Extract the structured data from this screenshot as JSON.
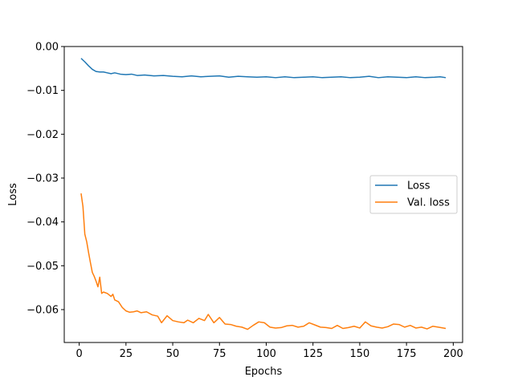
{
  "chart_data": {
    "type": "line",
    "title": "",
    "xlabel": "Epochs",
    "ylabel": "Loss",
    "xlim": [
      -8,
      205
    ],
    "ylim": [
      -0.0675,
      0.0
    ],
    "xticks": [
      0,
      25,
      50,
      75,
      100,
      125,
      150,
      175,
      200
    ],
    "xtick_labels": [
      "0",
      "25",
      "50",
      "75",
      "100",
      "125",
      "150",
      "175",
      "200"
    ],
    "yticks": [
      0.0,
      -0.01,
      -0.02,
      -0.03,
      -0.04,
      -0.05,
      -0.06
    ],
    "ytick_labels": [
      "0.00",
      "−0.01",
      "−0.02",
      "−0.03",
      "−0.04",
      "−0.05",
      "−0.06"
    ],
    "grid": false,
    "legend_position": "center-right",
    "series": [
      {
        "name": "Loss",
        "color": "#1f77b4",
        "points": [
          [
            1,
            -0.0027
          ],
          [
            3,
            -0.0035
          ],
          [
            5,
            -0.0044
          ],
          [
            7,
            -0.0052
          ],
          [
            9,
            -0.0057
          ],
          [
            11,
            -0.0058
          ],
          [
            13,
            -0.0058
          ],
          [
            15,
            -0.006
          ],
          [
            17,
            -0.0062
          ],
          [
            19,
            -0.006
          ],
          [
            22,
            -0.0063
          ],
          [
            25,
            -0.0064
          ],
          [
            28,
            -0.0063
          ],
          [
            31,
            -0.0066
          ],
          [
            35,
            -0.0065
          ],
          [
            40,
            -0.0067
          ],
          [
            45,
            -0.0066
          ],
          [
            50,
            -0.0068
          ],
          [
            55,
            -0.0069
          ],
          [
            60,
            -0.0067
          ],
          [
            65,
            -0.0069
          ],
          [
            70,
            -0.0068
          ],
          [
            75,
            -0.0067
          ],
          [
            80,
            -0.007
          ],
          [
            85,
            -0.0068
          ],
          [
            90,
            -0.0069
          ],
          [
            95,
            -0.007
          ],
          [
            100,
            -0.0069
          ],
          [
            105,
            -0.0071
          ],
          [
            110,
            -0.0069
          ],
          [
            115,
            -0.0071
          ],
          [
            120,
            -0.007
          ],
          [
            125,
            -0.0069
          ],
          [
            130,
            -0.0071
          ],
          [
            135,
            -0.007
          ],
          [
            140,
            -0.0069
          ],
          [
            145,
            -0.0071
          ],
          [
            150,
            -0.007
          ],
          [
            155,
            -0.0068
          ],
          [
            160,
            -0.0071
          ],
          [
            165,
            -0.0069
          ],
          [
            170,
            -0.007
          ],
          [
            175,
            -0.0071
          ],
          [
            180,
            -0.0069
          ],
          [
            185,
            -0.0071
          ],
          [
            190,
            -0.007
          ],
          [
            193,
            -0.0069
          ],
          [
            196,
            -0.0071
          ]
        ]
      },
      {
        "name": "Val. loss",
        "color": "#ff7f0e",
        "points": [
          [
            1,
            -0.0335
          ],
          [
            2,
            -0.0365
          ],
          [
            3,
            -0.0428
          ],
          [
            4,
            -0.0445
          ],
          [
            5,
            -0.047
          ],
          [
            6,
            -0.0493
          ],
          [
            7,
            -0.0515
          ],
          [
            8,
            -0.0524
          ],
          [
            9,
            -0.0535
          ],
          [
            10,
            -0.0548
          ],
          [
            11,
            -0.0526
          ],
          [
            12,
            -0.0563
          ],
          [
            13,
            -0.056
          ],
          [
            15,
            -0.0563
          ],
          [
            17,
            -0.057
          ],
          [
            18,
            -0.0565
          ],
          [
            19,
            -0.0578
          ],
          [
            21,
            -0.0582
          ],
          [
            23,
            -0.0595
          ],
          [
            25,
            -0.0603
          ],
          [
            27,
            -0.0606
          ],
          [
            29,
            -0.0605
          ],
          [
            31,
            -0.0603
          ],
          [
            33,
            -0.0607
          ],
          [
            36,
            -0.0605
          ],
          [
            39,
            -0.0612
          ],
          [
            42,
            -0.0615
          ],
          [
            44,
            -0.063
          ],
          [
            47,
            -0.0614
          ],
          [
            50,
            -0.0625
          ],
          [
            53,
            -0.0628
          ],
          [
            56,
            -0.063
          ],
          [
            58,
            -0.0624
          ],
          [
            61,
            -0.063
          ],
          [
            64,
            -0.062
          ],
          [
            67,
            -0.0625
          ],
          [
            69,
            -0.0611
          ],
          [
            72,
            -0.063
          ],
          [
            75,
            -0.0618
          ],
          [
            78,
            -0.0633
          ],
          [
            81,
            -0.0634
          ],
          [
            84,
            -0.0638
          ],
          [
            87,
            -0.064
          ],
          [
            90,
            -0.0645
          ],
          [
            93,
            -0.0636
          ],
          [
            96,
            -0.0628
          ],
          [
            99,
            -0.063
          ],
          [
            102,
            -0.064
          ],
          [
            105,
            -0.0642
          ],
          [
            108,
            -0.0641
          ],
          [
            111,
            -0.0637
          ],
          [
            114,
            -0.0636
          ],
          [
            117,
            -0.064
          ],
          [
            120,
            -0.0638
          ],
          [
            123,
            -0.063
          ],
          [
            126,
            -0.0635
          ],
          [
            129,
            -0.064
          ],
          [
            132,
            -0.0641
          ],
          [
            135,
            -0.0643
          ],
          [
            138,
            -0.0636
          ],
          [
            141,
            -0.0643
          ],
          [
            144,
            -0.0641
          ],
          [
            147,
            -0.0638
          ],
          [
            150,
            -0.0642
          ],
          [
            153,
            -0.0628
          ],
          [
            156,
            -0.0637
          ],
          [
            159,
            -0.064
          ],
          [
            162,
            -0.0642
          ],
          [
            165,
            -0.0639
          ],
          [
            168,
            -0.0633
          ],
          [
            171,
            -0.0634
          ],
          [
            174,
            -0.064
          ],
          [
            177,
            -0.0636
          ],
          [
            180,
            -0.0642
          ],
          [
            183,
            -0.064
          ],
          [
            186,
            -0.0644
          ],
          [
            189,
            -0.0638
          ],
          [
            192,
            -0.064
          ],
          [
            196,
            -0.0643
          ]
        ]
      }
    ]
  }
}
